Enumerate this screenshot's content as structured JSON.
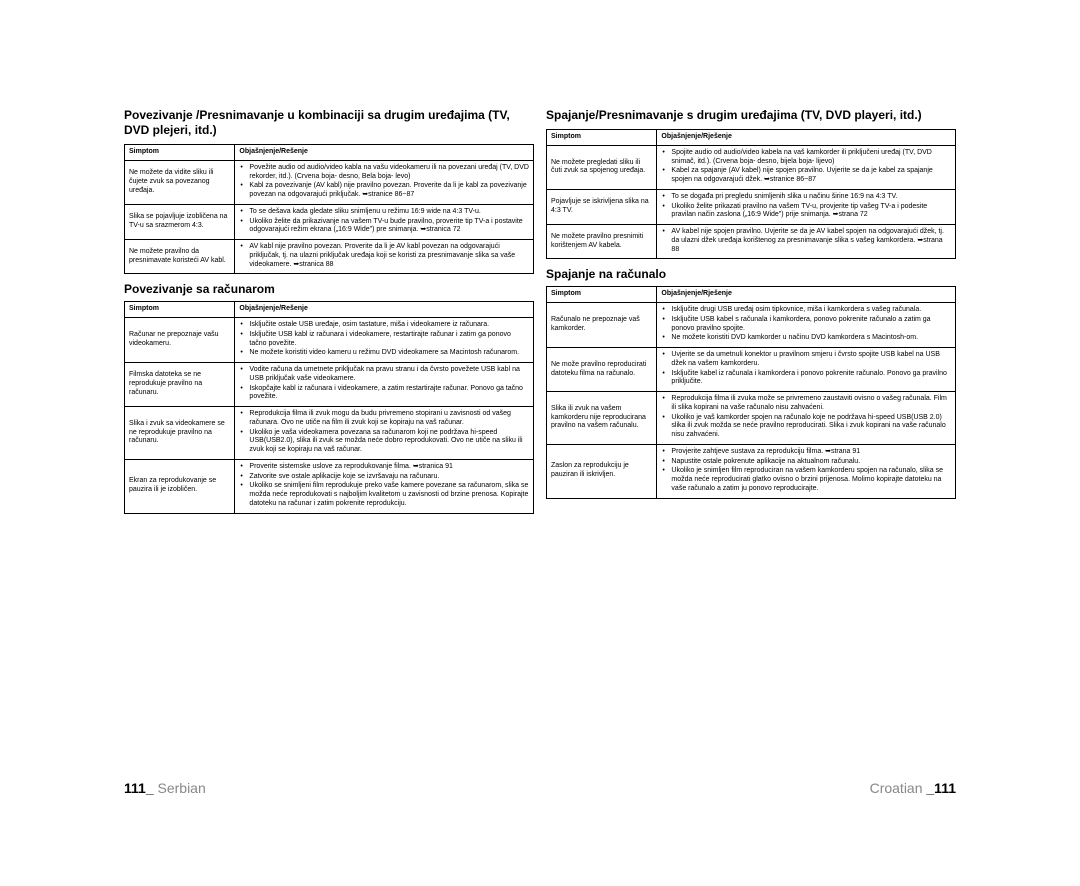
{
  "left": {
    "title": "Povezivanje /Presnimavanje u kombinaciji sa drugim uređajima (TV, DVD plejeri, itd.)",
    "headers": {
      "c1": "Simptom",
      "c2": "Objašnjenje/Rešenje"
    },
    "rows": [
      {
        "symptom": "Ne možete da vidite sliku ili čujete zvuk sa povezanog uređaja.",
        "bullets": [
          "Povežite audio od audio/video kabla na vašu videokameru ili na povezani uređaj (TV, DVD rekorder, itd.). (Crvena boja- desno, Bela boja- levo)",
          "Kabl za povezivanje (AV kabl) nije pravilno povezan. Proverite da li je kabl za povezivanje povezan na odgovarajući priključak. ➥stranice 86~87"
        ]
      },
      {
        "symptom": "Slika se pojavljuje izobličena na TV-u sa srazmerom 4:3.",
        "bullets": [
          "To se dešava kada gledate sliku snimljenu u režimu 16:9 wide na 4:3 TV-u.",
          "Ukoliko želite da prikazivanje na vašem TV-u bude pravilno, proverite tip TV-a i postavite odgovarajući režim ekrana („16:9 Wide\") pre snimanja. ➥stranica 72"
        ]
      },
      {
        "symptom": "Ne možete pravilno da presnimavate koristeći AV kabl.",
        "bullets": [
          "AV kabl nije pravilno povezan. Proverite da li je AV kabl povezan na odgovarajući priključak, tj. na ulazni priključak uređaja koji se koristi za presnimavanje slika sa vaše videokamere. ➥stranica 88"
        ]
      }
    ],
    "sub_title": "Povezivanje sa računarom",
    "sub_rows": [
      {
        "symptom": "Računar ne prepoznaje vašu videokameru.",
        "bullets": [
          "Isključite ostale USB uređaje, osim tastature, miša i videokamere iz računara.",
          "Isključite USB kabl iz računara i videokamere, restartirajte računar i zatim ga ponovo tačno povežite.",
          "Ne možete koristiti video kameru u režimu DVD videokamere sa Macintosh računarom."
        ]
      },
      {
        "symptom": "Filmska datoteka se ne reprodukuje pravilno na računaru.",
        "bullets": [
          "Vodite računa da umetnete priključak na pravu stranu i da čvrsto povežete USB kabl na USB priključak vaše videokamere.",
          "Iskopčajte kabl iz računara i videokamere, a zatim restartirajte računar. Ponovo ga tačno povežite."
        ]
      },
      {
        "symptom": "Slika i zvuk sa videokamere se ne reprodukuje pravilno na računaru.",
        "bullets": [
          "Reprodukcija filma ili zvuk mogu da budu privremeno stopirani u zavisnosti od vašeg računara. Ovo ne utiče na film ili zvuk koji se kopiraju na vaš računar.",
          "Ukoliko je vaša videokamera povezana sa računarom koji ne podržava hi-speed USB(USB2.0), slika ili zvuk se možda neće dobro reprodukovati. Ovo ne utiče na sliku ili zvuk koji se kopiraju na vaš računar."
        ]
      },
      {
        "symptom": "Ekran za reprodukovanje se pauzira ili je izobličen.",
        "bullets": [
          "Proverite sistemske uslove za reprodukovanje filma. ➥stranica 91",
          "Zatvorite sve ostale aplikacije koje se izvršavaju na računaru.",
          "Ukoliko se snimljeni film reprodukuje preko vaše kamere povezane sa računarom, slika se možda neće reprodukovati s najboljim kvalitetom u zavisnosti od brzine prenosa. Kopirajte datoteku na računar i zatim pokrenite reprodukciju."
        ]
      }
    ],
    "footer_page": "111_",
    "footer_lang": " Serbian"
  },
  "right": {
    "title": "Spajanje/Presnimavanje s drugim uređajima (TV, DVD playeri, itd.)",
    "headers": {
      "c1": "Simptom",
      "c2": "Objašnjenje/Rješenje"
    },
    "rows": [
      {
        "symptom": "Ne možete pregledati sliku ili čuti zvuk sa spojenog uređaja.",
        "bullets": [
          "Spojite audio od audio/video kabela na vaš kamkorder ili priključeni uređaj (TV, DVD snimač, itd.). (Crvena boja- desno, bijela boja- lijevo)",
          "Kabel za spajanje (AV kabel) nije spojen pravilno. Uvjerite se da je kabel za spajanje spojen na odgovarajući džek. ➥stranice 86~87"
        ]
      },
      {
        "symptom": "Pojavljuje se iskrivljena slika na 4:3 TV.",
        "bullets": [
          "To se događa pri pregledu snimljenih slika u načinu širine 16:9 na 4:3 TV.",
          "Ukoliko želite prikazati pravilno na vašem TV-u, provjerite tip vašeg TV-a i podesite pravilan način zaslona („16:9 Wide\") prije snimanja. ➥strana 72"
        ]
      },
      {
        "symptom": "Ne možete pravilno presnimiti korištenjem AV kabela.",
        "bullets": [
          "AV kabel nije spojen pravilno. Uvjerite se da je AV kabel spojen na odgovarajući džek, tj. da ulazni džek uređaja korištenog za presnimavanje slika s vašeg kamkordera. ➥strana 88"
        ]
      }
    ],
    "sub_title": "Spajanje na računalo",
    "sub_rows": [
      {
        "symptom": "Računalo ne prepoznaje vaš kamkorder.",
        "bullets": [
          "Isključite drugi USB uređaj osim tipkovnice, miša i kamkordera s vašeg računala.",
          "Isključite USB kabel s računala i kamkordera, ponovo pokrenite računalo a zatim ga ponovo pravilno spojite.",
          "Ne možete koristiti DVD kamkorder u načinu DVD kamkordera s Macintosh-om."
        ]
      },
      {
        "symptom": "Ne može pravilno reproducirati datoteku filma na računalo.",
        "bullets": [
          "Uvjerite se da umetnuli konektor u pravilnom smjeru i čvrsto spojite USB kabel na USB džek na vašem kamkorderu.",
          "Isključite kabel iz računala i kamkordera i ponovo pokrenite računalo. Ponovo ga pravilno priključite."
        ]
      },
      {
        "symptom": "Slika ili zvuk na vašem kamkorderu nije reproducirana pravilno na vašem računalu.",
        "bullets": [
          "Reprodukcija filma ili zvuka može se privremeno zaustaviti ovisno o vašeg računala. Film ili slika kopirani na vaše računalo nisu zahvaćeni.",
          "Ukoliko je vaš kamkorder spojen na računalo koje ne podržava hi-speed USB(USB 2.0) slika ili zvuk možda se neće pravilno reproducirati. Slika i zvuk kopirani na vaše računalo nisu zahvaćeni."
        ]
      },
      {
        "symptom": "Zaslon za reprodukciju je pauziran ili iskrivljen.",
        "bullets": [
          "Provjerite zahtjeve sustava za reprodukciju filma. ➥strana 91",
          "Napustite ostale pokrenute aplikacije na aktualnom računalu.",
          "Ukoliko je snimljen film reproduciran na vašem kamkorderu spojen na računalo, slika se možda neće reproducirati glatko ovisno o brzini prijenosa. Molimo kopirajte datoteku na vaše računalo a zatim ju ponovo reproducirajte."
        ]
      }
    ],
    "footer_lang": "Croatian ",
    "footer_page": "_111"
  }
}
